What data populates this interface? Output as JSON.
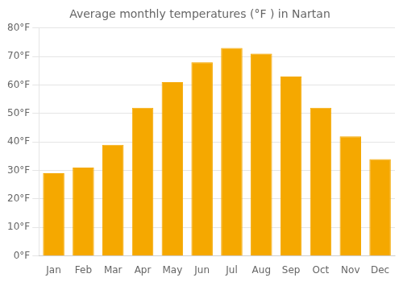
{
  "chart_data": {
    "type": "bar",
    "title": "Average monthly temperatures (°F ) in Nartan",
    "categories": [
      "Jan",
      "Feb",
      "Mar",
      "Apr",
      "May",
      "Jun",
      "Jul",
      "Aug",
      "Sep",
      "Oct",
      "Nov",
      "Dec"
    ],
    "values": [
      29,
      31,
      39,
      52,
      61,
      68,
      73,
      71,
      63,
      52,
      42,
      34
    ],
    "color": "#F5A800",
    "ylim": [
      0,
      80
    ],
    "yticks": [
      {
        "value": 0,
        "label": "0°F"
      },
      {
        "value": 10,
        "label": "10°F"
      },
      {
        "value": 20,
        "label": "20°F"
      },
      {
        "value": 30,
        "label": "30°F"
      },
      {
        "value": 40,
        "label": "40°F"
      },
      {
        "value": 50,
        "label": "50°F"
      },
      {
        "value": 60,
        "label": "60°F"
      },
      {
        "value": 70,
        "label": "70°F"
      },
      {
        "value": 80,
        "label": "80°F"
      }
    ],
    "grid": true
  }
}
